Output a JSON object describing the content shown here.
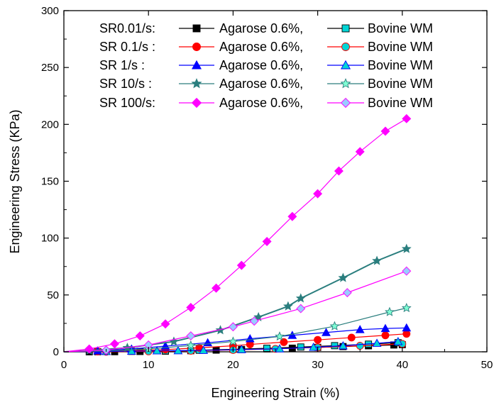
{
  "chart_data": {
    "type": "line",
    "xlabel": "Engineering Strain (%)",
    "ylabel": "Engineering Stress (KPa)",
    "xlim": [
      0,
      50
    ],
    "ylim": [
      0,
      300
    ],
    "xticks": [
      "0",
      "10",
      "20",
      "30",
      "40",
      "50"
    ],
    "yticks": [
      "0",
      "50",
      "100",
      "150",
      "200",
      "250",
      "300"
    ],
    "grid": false,
    "legend_position": "top",
    "legend": {
      "row_labels": [
        "SR0.01/s:",
        "SR 0.1/s :",
        "SR 1/s  :",
        "SR 10/s :",
        "SR 100/s:"
      ],
      "material_1": "Agarose 0.6%,",
      "material_2": "Bovine WM"
    },
    "series": [
      {
        "rate_index": 0,
        "material": "agarose",
        "color": "#000000",
        "marker": "square",
        "fill": "#000000",
        "x": [
          0,
          3,
          6,
          9,
          12,
          15,
          18,
          21,
          24,
          27,
          30,
          33,
          36,
          39,
          40
        ],
        "y": [
          0,
          0,
          0.1,
          0.3,
          0.6,
          1.0,
          1.5,
          2.0,
          2.6,
          3.2,
          3.9,
          4.6,
          5.3,
          6.0,
          6.3
        ]
      },
      {
        "rate_index": 0,
        "material": "bovine",
        "color": "#000000",
        "marker": "square",
        "fill": "#00d5d5",
        "x": [
          0,
          4,
          8,
          12,
          16,
          20,
          24,
          28,
          32,
          36,
          39.5
        ],
        "y": [
          0,
          0.1,
          0.4,
          0.8,
          1.4,
          2.2,
          3.1,
          4.2,
          5.4,
          6.7,
          8.0
        ]
      },
      {
        "rate_index": 1,
        "material": "agarose",
        "color": "#ff0000",
        "marker": "circle",
        "fill": "#ff0000",
        "x": [
          0,
          4,
          8,
          12,
          16,
          20,
          22,
          26,
          30,
          34,
          38,
          40.5
        ],
        "y": [
          0,
          0.3,
          1.0,
          2.0,
          3.5,
          5.3,
          6.5,
          8.5,
          10.5,
          12.5,
          14.5,
          15.8
        ]
      },
      {
        "rate_index": 1,
        "material": "bovine",
        "color": "#ff0000",
        "marker": "circle",
        "fill": "#00d5d5",
        "x": [
          0,
          5,
          10,
          15,
          20,
          25,
          30,
          35,
          40
        ],
        "y": [
          0,
          0.1,
          0.4,
          0.9,
          1.6,
          2.6,
          3.8,
          5.3,
          7.0
        ]
      },
      {
        "rate_index": 2,
        "material": "agarose",
        "color": "#0000ff",
        "marker": "triangle",
        "fill": "#0000ff",
        "x": [
          0,
          4,
          8,
          12,
          17,
          22,
          27,
          31,
          35,
          38,
          40.5
        ],
        "y": [
          0,
          0.8,
          2.5,
          5.0,
          8.0,
          11.5,
          14.5,
          17.0,
          19.5,
          20.5,
          21.0
        ]
      },
      {
        "rate_index": 2,
        "material": "bovine",
        "color": "#0000ff",
        "marker": "triangle",
        "fill": "#00d5d5",
        "x": [
          0,
          5,
          8,
          11,
          13.5,
          16.5,
          21,
          25.5,
          29.5,
          33,
          37,
          39.5
        ],
        "y": [
          0,
          0.3,
          0.6,
          0.9,
          1.0,
          1.3,
          2.0,
          2.7,
          4.0,
          5.3,
          7.5,
          9.0
        ]
      },
      {
        "rate_index": 3,
        "material": "agarose",
        "color": "#2a7e7e",
        "marker": "star",
        "fill": "#2a7e7e",
        "x": [
          0,
          3,
          7.5,
          13,
          18.5,
          23,
          26.5,
          28,
          33,
          37,
          40.5
        ],
        "y": [
          0,
          1.0,
          3.5,
          9.0,
          19.0,
          30.5,
          40.0,
          47.0,
          65.0,
          80.0,
          90.5
        ]
      },
      {
        "rate_index": 3,
        "material": "bovine",
        "color": "#2a7e7e",
        "marker": "star",
        "fill": "#7fffd4",
        "x": [
          0,
          5,
          10,
          15,
          20,
          25.5,
          32,
          38.5,
          40.5
        ],
        "y": [
          0,
          0.7,
          2.5,
          5.5,
          9.0,
          13.5,
          22.5,
          35.0,
          38.5
        ]
      },
      {
        "rate_index": 4,
        "material": "agarose",
        "color": "#ff00ff",
        "marker": "diamond",
        "fill": "#ff00ff",
        "x": [
          0,
          3,
          6,
          9,
          12,
          15,
          18,
          21,
          24,
          27,
          30,
          32.5,
          35,
          38,
          40.5
        ],
        "y": [
          0,
          2.5,
          7,
          14,
          24.5,
          39,
          56,
          76,
          97,
          119,
          139,
          159,
          176,
          194,
          205
        ]
      },
      {
        "rate_index": 4,
        "material": "bovine",
        "color": "#ff00ff",
        "marker": "diamond",
        "fill": "#99ccff",
        "x": [
          0,
          5,
          10,
          15,
          20,
          22.5,
          28,
          33.5,
          40.5
        ],
        "y": [
          0,
          1.5,
          6,
          14,
          22,
          27,
          38,
          52,
          71
        ]
      }
    ]
  }
}
